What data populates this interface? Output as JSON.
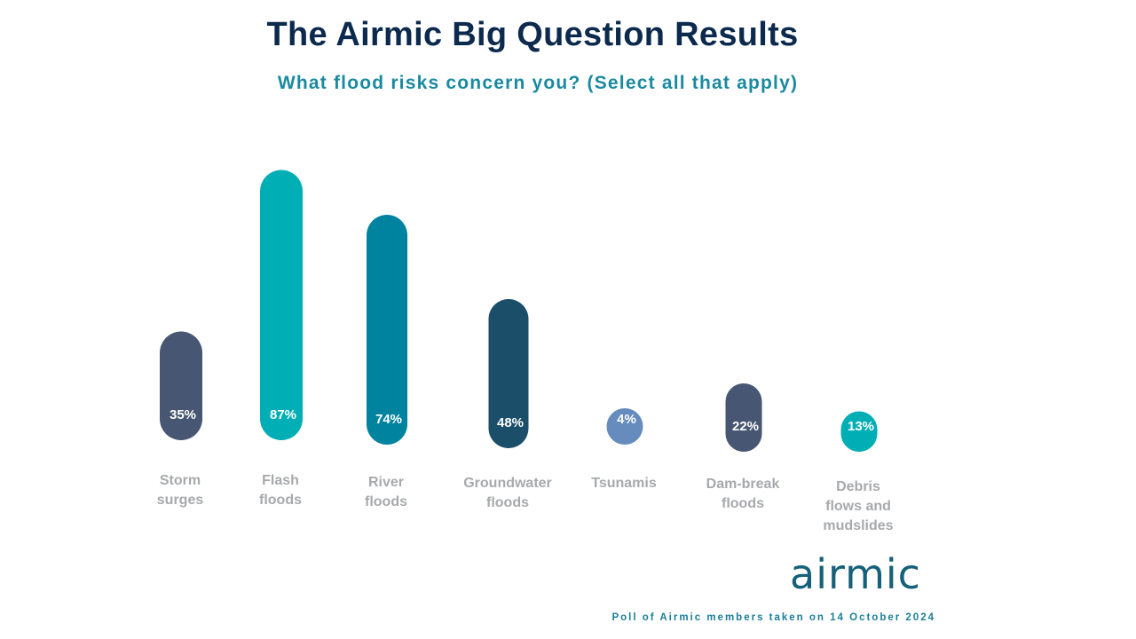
{
  "header": {
    "title": "The Airmic Big Question Results",
    "subtitle": "What flood risks concern you? (Select all that apply)"
  },
  "chart_data": {
    "type": "bar",
    "categories": [
      [
        "Storm",
        "surges"
      ],
      [
        "Flash",
        "floods"
      ],
      [
        "River",
        "floods"
      ],
      [
        "Groundwater",
        "floods"
      ],
      [
        "Tsunamis"
      ],
      [
        "Dam-break",
        "floods"
      ],
      [
        "Debris",
        "flows and",
        "mudslides"
      ]
    ],
    "values": [
      35,
      87,
      74,
      48,
      4,
      22,
      13
    ],
    "value_labels": [
      "35%",
      "87%",
      "74%",
      "48%",
      "4%",
      "22%",
      "13%"
    ],
    "bar_colors": [
      "#475672",
      "#00afb5",
      "#00839f",
      "#1a4e69",
      "#668cbd",
      "#475672",
      "#00afb5"
    ],
    "unit": "%",
    "ylim": [
      0,
      100
    ],
    "grid": false,
    "legend": "none"
  },
  "branding": {
    "logo_text": "airmic",
    "logo_color": "#16607a"
  },
  "footer": {
    "note": "Poll of Airmic members taken on 14 October 2024"
  }
}
